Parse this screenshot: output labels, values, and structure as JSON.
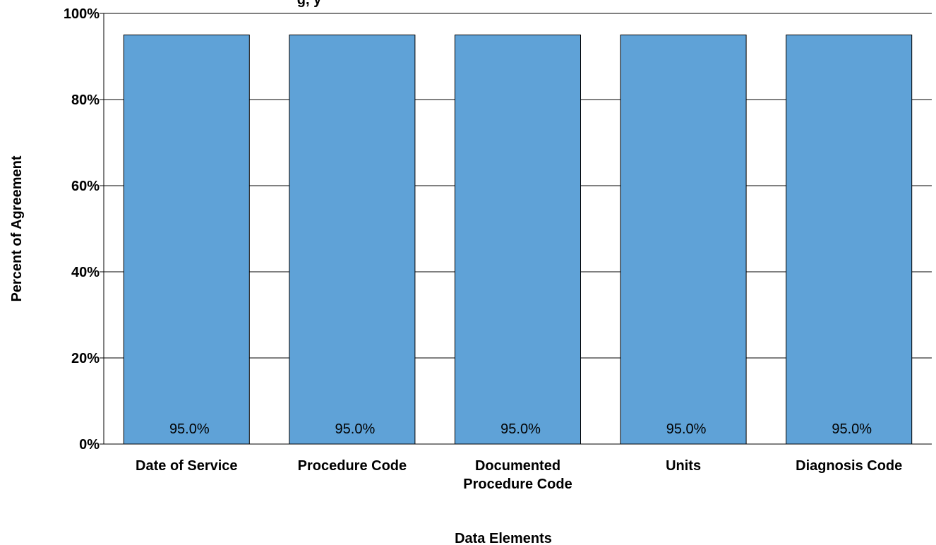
{
  "chart_data": {
    "type": "bar",
    "title_fragment": "g, y",
    "categories": [
      [
        "Date of Service"
      ],
      [
        "Procedure Code"
      ],
      [
        "Documented",
        "Procedure Code"
      ],
      [
        "Units"
      ],
      [
        "Diagnosis Code"
      ]
    ],
    "values": [
      95.0,
      95.0,
      95.0,
      95.0,
      95.0
    ],
    "data_labels": [
      "95.0%",
      "95.0%",
      "95.0%",
      "95.0%",
      "95.0%"
    ],
    "xlabel": "Data Elements",
    "ylabel": "Percent of Agreement",
    "ylim": [
      0,
      100
    ],
    "yticks": [
      0,
      20,
      40,
      60,
      80,
      100
    ],
    "ytick_labels": [
      "0%",
      "20%",
      "40%",
      "60%",
      "80%",
      "100%"
    ],
    "grid": true,
    "legend": "none",
    "colors": {
      "bar": "#5fa2d7",
      "bar_edge": "#000000",
      "grid": "#000000"
    }
  }
}
